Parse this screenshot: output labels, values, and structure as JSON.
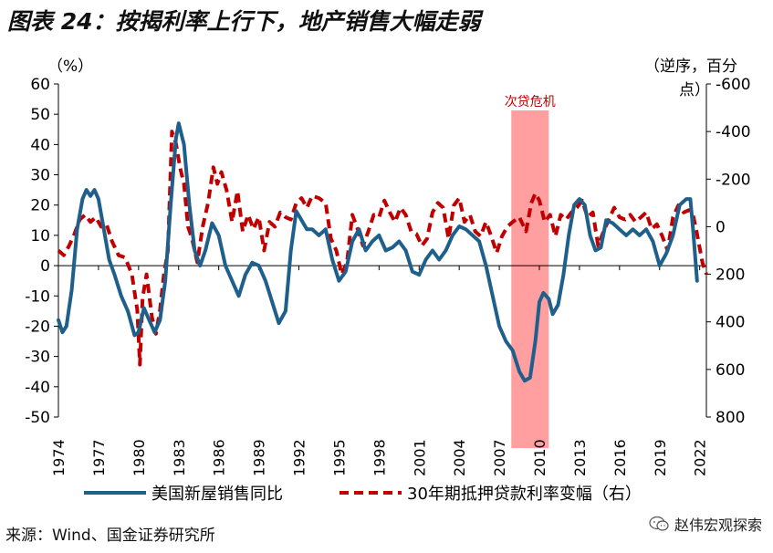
{
  "title": "图表 24：按揭利率上行下，地产销售大幅走弱",
  "source": "来源：Wind、国金证券研究所",
  "watermark": "赵伟宏观探索",
  "colors": {
    "series1": "#1f5f8b",
    "series2": "#c00000",
    "shade": "#ff9a9a",
    "axis": "#000000"
  },
  "chart_data": {
    "type": "line",
    "left_unit": "（%）",
    "right_unit_line1": "（逆序，百分",
    "right_unit_line2": "点）",
    "left_ylim": [
      -50,
      60
    ],
    "left_ticks": [
      60,
      50,
      40,
      30,
      20,
      10,
      0,
      -10,
      -20,
      -30,
      -40,
      -50
    ],
    "right_ylim": [
      -600,
      800
    ],
    "right_inverted": true,
    "right_ticks": [
      -600,
      -400,
      -200,
      0,
      200,
      400,
      600,
      800
    ],
    "xlim": [
      1974,
      2022.5
    ],
    "x_ticks": [
      "1974",
      "1977",
      "1980",
      "1983",
      "1986",
      "1989",
      "1992",
      "1995",
      "1998",
      "2001",
      "2004",
      "2007",
      "2010",
      "2013",
      "2016",
      "2019",
      "2022"
    ],
    "annotation": {
      "label": "次贷危机",
      "x_range": [
        2007.9,
        2010.7
      ]
    },
    "legend": [
      "美国新屋销售同比",
      "30年期抵押贷款利率变幅（右）"
    ],
    "series": [
      {
        "name": "美国新屋销售同比",
        "axis": "left",
        "points": [
          [
            1974.0,
            -18
          ],
          [
            1974.3,
            -22
          ],
          [
            1974.6,
            -20
          ],
          [
            1975.0,
            -8
          ],
          [
            1975.4,
            12
          ],
          [
            1975.8,
            22
          ],
          [
            1976.1,
            25
          ],
          [
            1976.4,
            23
          ],
          [
            1976.7,
            25
          ],
          [
            1977.0,
            22
          ],
          [
            1977.4,
            12
          ],
          [
            1977.8,
            2
          ],
          [
            1978.2,
            -3
          ],
          [
            1978.7,
            -10
          ],
          [
            1979.2,
            -15
          ],
          [
            1979.7,
            -23
          ],
          [
            1980.0,
            -22
          ],
          [
            1980.4,
            -14
          ],
          [
            1980.8,
            -18
          ],
          [
            1981.2,
            -22
          ],
          [
            1981.6,
            -18
          ],
          [
            1982.0,
            -5
          ],
          [
            1982.4,
            20
          ],
          [
            1982.8,
            42
          ],
          [
            1983.0,
            47
          ],
          [
            1983.4,
            40
          ],
          [
            1983.8,
            20
          ],
          [
            1984.2,
            5
          ],
          [
            1984.6,
            0
          ],
          [
            1985.0,
            5
          ],
          [
            1985.5,
            14
          ],
          [
            1986.0,
            10
          ],
          [
            1986.5,
            0
          ],
          [
            1987.0,
            -5
          ],
          [
            1987.5,
            -10
          ],
          [
            1988.0,
            -3
          ],
          [
            1988.5,
            1
          ],
          [
            1989.0,
            0
          ],
          [
            1989.5,
            -5
          ],
          [
            1990.0,
            -12
          ],
          [
            1990.5,
            -19
          ],
          [
            1991.0,
            -15
          ],
          [
            1991.4,
            5
          ],
          [
            1991.8,
            18
          ],
          [
            1992.2,
            15
          ],
          [
            1992.6,
            12
          ],
          [
            1993.0,
            12
          ],
          [
            1993.5,
            10
          ],
          [
            1994.0,
            12
          ],
          [
            1994.5,
            2
          ],
          [
            1995.0,
            -5
          ],
          [
            1995.5,
            -2
          ],
          [
            1996.0,
            8
          ],
          [
            1996.5,
            12
          ],
          [
            1997.0,
            5
          ],
          [
            1997.5,
            8
          ],
          [
            1998.0,
            10
          ],
          [
            1998.5,
            5
          ],
          [
            1999.0,
            6
          ],
          [
            1999.5,
            8
          ],
          [
            2000.0,
            5
          ],
          [
            2000.5,
            -2
          ],
          [
            2001.0,
            -3
          ],
          [
            2001.5,
            2
          ],
          [
            2002.0,
            5
          ],
          [
            2002.5,
            2
          ],
          [
            2003.0,
            5
          ],
          [
            2003.5,
            10
          ],
          [
            2004.0,
            13
          ],
          [
            2004.5,
            12
          ],
          [
            2005.0,
            10
          ],
          [
            2005.5,
            8
          ],
          [
            2006.0,
            0
          ],
          [
            2006.5,
            -10
          ],
          [
            2007.0,
            -20
          ],
          [
            2007.5,
            -25
          ],
          [
            2008.0,
            -28
          ],
          [
            2008.5,
            -35
          ],
          [
            2008.9,
            -38
          ],
          [
            2009.3,
            -37
          ],
          [
            2009.7,
            -25
          ],
          [
            2010.0,
            -12
          ],
          [
            2010.3,
            -9
          ],
          [
            2010.7,
            -11
          ],
          [
            2011.0,
            -16
          ],
          [
            2011.4,
            -13
          ],
          [
            2011.8,
            -3
          ],
          [
            2012.2,
            10
          ],
          [
            2012.6,
            20
          ],
          [
            2013.0,
            22
          ],
          [
            2013.4,
            20
          ],
          [
            2013.8,
            10
          ],
          [
            2014.2,
            5
          ],
          [
            2014.6,
            6
          ],
          [
            2015.0,
            15
          ],
          [
            2015.5,
            14
          ],
          [
            2016.0,
            12
          ],
          [
            2016.5,
            10
          ],
          [
            2017.0,
            12
          ],
          [
            2017.5,
            10
          ],
          [
            2018.0,
            12
          ],
          [
            2018.5,
            8
          ],
          [
            2019.0,
            0
          ],
          [
            2019.5,
            4
          ],
          [
            2020.0,
            10
          ],
          [
            2020.5,
            20
          ],
          [
            2021.0,
            22
          ],
          [
            2021.3,
            22
          ],
          [
            2021.5,
            12
          ],
          [
            2021.8,
            -5
          ]
        ]
      },
      {
        "name": "30年期抵押贷款利率变幅（右）",
        "axis": "right",
        "points": [
          [
            1974.0,
            100
          ],
          [
            1974.4,
            120
          ],
          [
            1974.8,
            80
          ],
          [
            1975.2,
            30
          ],
          [
            1975.6,
            -30
          ],
          [
            1976.0,
            -50
          ],
          [
            1976.4,
            -20
          ],
          [
            1976.8,
            -40
          ],
          [
            1977.2,
            0
          ],
          [
            1977.6,
            -10
          ],
          [
            1978.0,
            60
          ],
          [
            1978.5,
            120
          ],
          [
            1979.0,
            130
          ],
          [
            1979.5,
            200
          ],
          [
            1979.9,
            350
          ],
          [
            1980.1,
            580
          ],
          [
            1980.3,
            300
          ],
          [
            1980.6,
            200
          ],
          [
            1981.0,
            380
          ],
          [
            1981.3,
            450
          ],
          [
            1981.6,
            350
          ],
          [
            1981.9,
            200
          ],
          [
            1982.2,
            100
          ],
          [
            1982.5,
            -400
          ],
          [
            1982.8,
            -350
          ],
          [
            1983.1,
            -250
          ],
          [
            1983.4,
            -180
          ],
          [
            1983.7,
            0
          ],
          [
            1984.0,
            50
          ],
          [
            1984.4,
            150
          ],
          [
            1984.8,
            0
          ],
          [
            1985.2,
            -100
          ],
          [
            1985.6,
            -250
          ],
          [
            1985.9,
            -180
          ],
          [
            1986.2,
            -230
          ],
          [
            1986.6,
            -150
          ],
          [
            1987.0,
            -20
          ],
          [
            1987.4,
            -150
          ],
          [
            1987.8,
            20
          ],
          [
            1988.2,
            -50
          ],
          [
            1988.6,
            10
          ],
          [
            1989.0,
            -40
          ],
          [
            1989.4,
            100
          ],
          [
            1989.8,
            -20
          ],
          [
            1990.2,
            0
          ],
          [
            1990.6,
            -60
          ],
          [
            1991.0,
            -40
          ],
          [
            1991.4,
            -30
          ],
          [
            1991.8,
            -100
          ],
          [
            1992.2,
            -120
          ],
          [
            1992.6,
            -80
          ],
          [
            1993.0,
            -130
          ],
          [
            1993.5,
            -120
          ],
          [
            1994.0,
            -100
          ],
          [
            1994.4,
            50
          ],
          [
            1994.8,
            100
          ],
          [
            1995.2,
            200
          ],
          [
            1995.6,
            150
          ],
          [
            1996.0,
            -50
          ],
          [
            1996.4,
            10
          ],
          [
            1996.8,
            80
          ],
          [
            1997.2,
            20
          ],
          [
            1997.6,
            -50
          ],
          [
            1998.0,
            -40
          ],
          [
            1998.4,
            -110
          ],
          [
            1998.8,
            -60
          ],
          [
            1999.2,
            -20
          ],
          [
            1999.6,
            -80
          ],
          [
            2000.0,
            -50
          ],
          [
            2000.4,
            20
          ],
          [
            2000.8,
            30
          ],
          [
            2001.2,
            80
          ],
          [
            2001.6,
            50
          ],
          [
            2002.0,
            -60
          ],
          [
            2002.4,
            -100
          ],
          [
            2002.8,
            -80
          ],
          [
            2003.2,
            50
          ],
          [
            2003.6,
            -90
          ],
          [
            2004.0,
            -120
          ],
          [
            2004.4,
            -20
          ],
          [
            2004.8,
            -50
          ],
          [
            2005.2,
            20
          ],
          [
            2005.6,
            40
          ],
          [
            2006.0,
            -20
          ],
          [
            2006.4,
            40
          ],
          [
            2006.8,
            110
          ],
          [
            2007.2,
            40
          ],
          [
            2007.6,
            0
          ],
          [
            2008.0,
            -20
          ],
          [
            2008.5,
            -40
          ],
          [
            2009.0,
            20
          ],
          [
            2009.4,
            -100
          ],
          [
            2009.7,
            -140
          ],
          [
            2010.0,
            -110
          ],
          [
            2010.4,
            -20
          ],
          [
            2010.8,
            -50
          ],
          [
            2011.2,
            40
          ],
          [
            2011.6,
            -50
          ],
          [
            2012.0,
            -30
          ],
          [
            2012.4,
            -60
          ],
          [
            2012.8,
            -80
          ],
          [
            2013.2,
            -110
          ],
          [
            2013.6,
            -40
          ],
          [
            2014.0,
            -60
          ],
          [
            2014.4,
            80
          ],
          [
            2014.8,
            20
          ],
          [
            2015.2,
            -30
          ],
          [
            2015.6,
            -80
          ],
          [
            2016.0,
            -40
          ],
          [
            2016.4,
            -30
          ],
          [
            2016.8,
            -50
          ],
          [
            2017.2,
            -20
          ],
          [
            2017.6,
            -40
          ],
          [
            2018.0,
            -60
          ],
          [
            2018.4,
            10
          ],
          [
            2018.8,
            -10
          ],
          [
            2019.2,
            40
          ],
          [
            2019.6,
            100
          ],
          [
            2020.0,
            -40
          ],
          [
            2020.4,
            -90
          ],
          [
            2020.8,
            -60
          ],
          [
            2021.2,
            -70
          ],
          [
            2021.5,
            -50
          ],
          [
            2021.8,
            30
          ],
          [
            2022.2,
            150
          ],
          [
            2022.5,
            200
          ]
        ]
      }
    ]
  }
}
